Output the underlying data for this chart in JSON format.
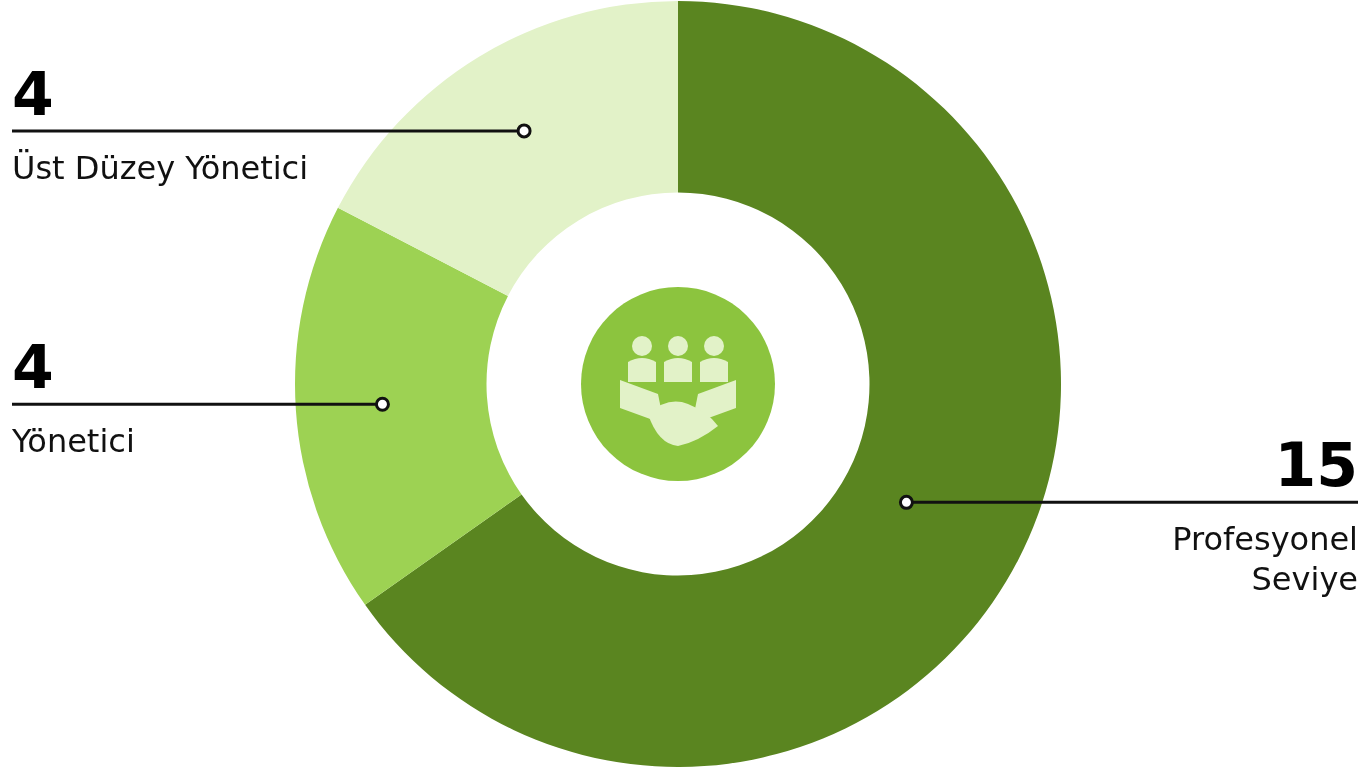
{
  "chart_data": {
    "type": "donut",
    "categories": [
      "Profesyonel Seviye",
      "Yönetici",
      "Üst Düzey Yönetici"
    ],
    "values": [
      15,
      4,
      4
    ],
    "colors": [
      "#5a8520",
      "#9dd253",
      "#e2f2c8"
    ],
    "data_labels": true
  }
}
